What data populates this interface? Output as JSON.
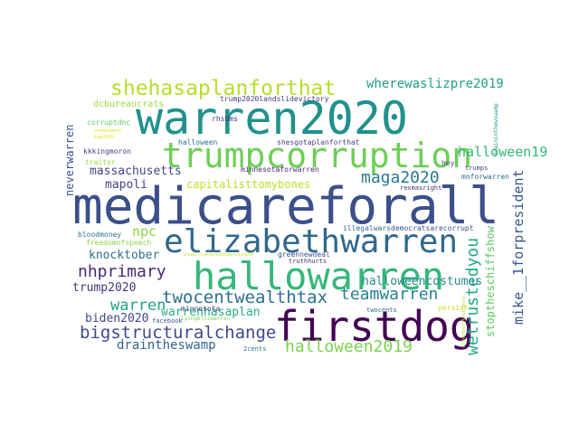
{
  "words": [
    {
      "text": "medicareforall",
      "color": "#3b4f8a"
    },
    {
      "text": "warren2020",
      "color": "#21918c"
    },
    {
      "text": "hallowarren",
      "color": "#35b779"
    },
    {
      "text": "firstdog",
      "color": "#440154"
    },
    {
      "text": "elizabethwarren",
      "color": "#31688e"
    },
    {
      "text": "trumpcorruption",
      "color": "#6ece58"
    },
    {
      "text": "shehasaplanforthat",
      "color": "#b5de2b"
    },
    {
      "text": "bigstructuralchange",
      "color": "#3e4a89"
    },
    {
      "text": "twocentwealthtax",
      "color": "#2d708e"
    },
    {
      "text": "maga2020",
      "color": "#2a788e"
    },
    {
      "text": "halloween2019",
      "color": "#7ad151"
    },
    {
      "text": "nhprimary",
      "color": "#482878"
    },
    {
      "text": "wherewaslizpre2019",
      "color": "#1f9e89"
    },
    {
      "text": "teamwarren",
      "color": "#26828e"
    },
    {
      "text": "wetrustedyou",
      "color": "#22a884"
    },
    {
      "text": "halloween19",
      "color": "#35b779"
    },
    {
      "text": "massachusetts",
      "color": "#3e4989"
    },
    {
      "text": "capitalisttomybones",
      "color": "#bddf26"
    },
    {
      "text": "mapoli",
      "color": "#414487"
    },
    {
      "text": "npc",
      "color": "#8fd744"
    },
    {
      "text": "knocktober",
      "color": "#2c728e"
    },
    {
      "text": "halloweencostumes",
      "color": "#23888e"
    },
    {
      "text": "mike__1forpresident",
      "color": "#39568c"
    },
    {
      "text": "warren",
      "color": "#1fa187"
    },
    {
      "text": "warrenhasaplan",
      "color": "#28ae80"
    },
    {
      "text": "trump2020",
      "color": "#46337e"
    },
    {
      "text": "biden2020",
      "color": "#3f4889"
    },
    {
      "text": "draintheswamp",
      "color": "#33638d"
    },
    {
      "text": "stoptheschiffshow",
      "color": "#5ec962"
    },
    {
      "text": "neverwarren",
      "color": "#3b528b"
    },
    {
      "text": "dcbureaucrats",
      "color": "#a0da39"
    },
    {
      "text": "trump2020landslidevictory",
      "color": "#443983"
    },
    {
      "text": "rhsbms",
      "color": "#472d7b"
    },
    {
      "text": "corruptdnc",
      "color": "#63cb5f"
    },
    {
      "text": "votehimout",
      "color": "#d8e219"
    },
    {
      "text": "kag2020",
      "color": "#e5e419"
    },
    {
      "text": "kkkingmoron",
      "color": "#404688"
    },
    {
      "text": "halloween",
      "color": "#2e6e8e"
    },
    {
      "text": "shesgotaplanforthat",
      "color": "#414487"
    },
    {
      "text": "minnesotaforwarren",
      "color": "#481f70"
    },
    {
      "text": "traitor",
      "color": "#9bd93c"
    },
    {
      "text": "hey",
      "color": "#3e4c8a"
    },
    {
      "text": "trumps",
      "color": "#3f4788"
    },
    {
      "text": "mnforwarren",
      "color": "#2e6f8e"
    },
    {
      "text": "rexmasright",
      "color": "#453781"
    },
    {
      "text": "draininthewswamp",
      "color": "#1f988b"
    },
    {
      "text": "illegalwars",
      "color": "#2e6d8e"
    },
    {
      "text": "democratsarecorrupt",
      "color": "#3d4d8a"
    },
    {
      "text": "bloodmoney",
      "color": "#2c738e"
    },
    {
      "text": "freedomofspeech",
      "color": "#8bd646"
    },
    {
      "text": "youwillneverbethepresident",
      "color": "#c2df23"
    },
    {
      "text": "greennewdeal",
      "color": "#3b528b"
    },
    {
      "text": "truthhurts",
      "color": "#472f7d"
    },
    {
      "text": "minnesota",
      "color": "#404387"
    },
    {
      "text": "persist",
      "color": "#c8e020"
    },
    {
      "text": "suckerbergtestimony",
      "color": "#b0dd2f"
    },
    {
      "text": "lyingelizwarren",
      "color": "#7fd34e"
    },
    {
      "text": "twocents",
      "color": "#32658e"
    },
    {
      "text": "facebook",
      "color": "#3a548c"
    },
    {
      "text": "2cents",
      "color": "#2a768e"
    }
  ]
}
